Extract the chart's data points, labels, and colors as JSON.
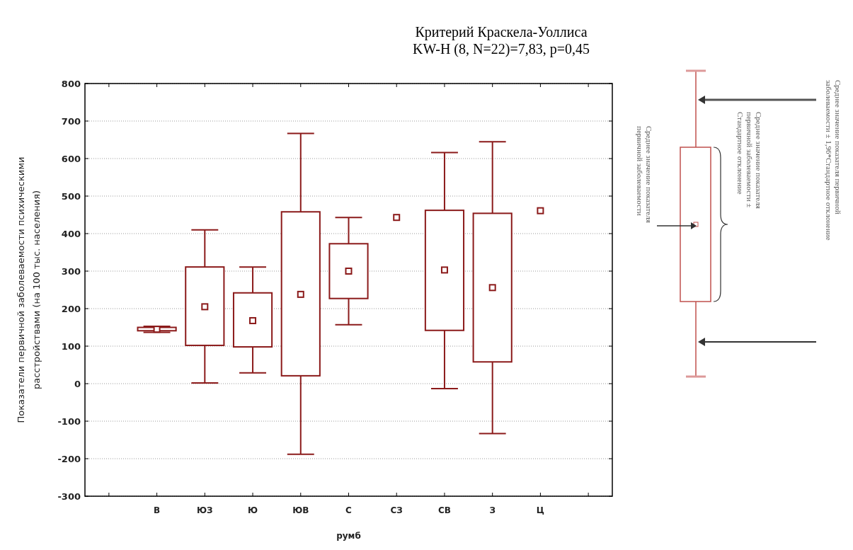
{
  "chart_data": {
    "type": "box",
    "title": "Критерий Краскела-Уоллиса",
    "subtitle": "KW-H (8, N=22)=7,83, p=0,45",
    "xlabel": "румб",
    "ylabel": "Показатели первичной заболеваемости психическими расстройствами (на 100 тыс. населения)",
    "categories": [
      null,
      "В",
      "ЮЗ",
      "Ю",
      "ЮВ",
      "С",
      "СЗ",
      "СВ",
      "З",
      "Ц",
      null
    ],
    "color": "#8b1a1a",
    "marker": "square",
    "boxes": [
      null,
      {
        "low": 137,
        "q1": 141,
        "q3": 150,
        "high": 153,
        "mean": 145
      },
      {
        "low": 2,
        "q1": 102,
        "q3": 311,
        "high": 410,
        "mean": 205
      },
      {
        "low": 29,
        "q1": 98,
        "q3": 242,
        "high": 311,
        "mean": 168
      },
      {
        "low": -188,
        "q1": 21,
        "q3": 458,
        "high": 667,
        "mean": 238
      },
      {
        "low": 157,
        "q1": 227,
        "q3": 373,
        "high": 443,
        "mean": 300
      },
      null,
      {
        "low": -13,
        "q1": 142,
        "q3": 462,
        "high": 616,
        "mean": 303
      },
      {
        "low": -133,
        "q1": 58,
        "q3": 454,
        "high": 645,
        "mean": 256
      },
      null,
      null
    ],
    "ylim": [
      -300,
      800
    ],
    "yticks": [
      -300,
      -200,
      -100,
      0,
      100,
      200,
      300,
      400,
      500,
      600,
      700,
      800
    ],
    "grid": "y",
    "series": [
      {
        "type": "scatter",
        "x": [
          "СЗ",
          "Ц"
        ],
        "values": [
          443,
          461
        ],
        "color": "#8b1a1a"
      }
    ],
    "annotations": [
      "Среднее значение показателя первичной заболеваемости",
      "Среднее значение показателя первичной заболеваемости ± Стандартное отклонение",
      "Среднее значение показателя первичной заболеваемости ± 1,96*Стандартное отклонение"
    ]
  }
}
